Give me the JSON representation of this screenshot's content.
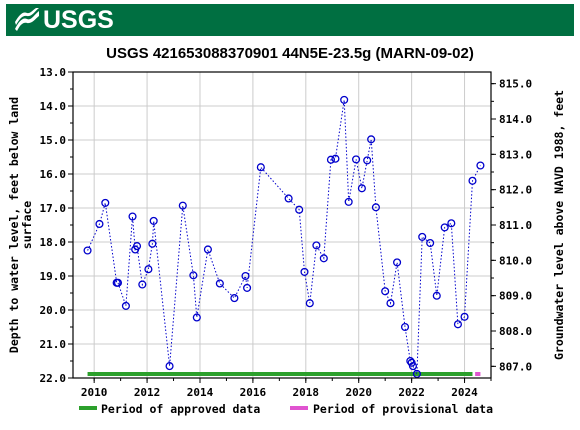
{
  "header": {
    "logo_text": "USGS",
    "background_color": "#006f41"
  },
  "chart_data": {
    "type": "line",
    "title": "USGS 421653088370901 44N5E-23.5g (MARN-09-02)",
    "ylabel_left": "Depth to water level, feet below land surface",
    "ylabel_right": "Groundwater level above NAVD 1988, feet",
    "xlim": [
      2009.2,
      2025.0
    ],
    "ylim_left": [
      13.0,
      22.0
    ],
    "ylim_right": [
      815.33,
      806.67
    ],
    "y_inverted": true,
    "x_ticks": [
      "2010",
      "2012",
      "2014",
      "2016",
      "2018",
      "2020",
      "2022",
      "2024"
    ],
    "y_left_ticks": [
      "13.0",
      "14.0",
      "15.0",
      "16.0",
      "17.0",
      "18.0",
      "19.0",
      "20.0",
      "21.0",
      "22.0"
    ],
    "y_right_ticks": [
      "815.0",
      "814.0",
      "813.0",
      "812.0",
      "811.0",
      "810.0",
      "809.0",
      "808.0",
      "807.0"
    ],
    "grid": true,
    "series": [
      {
        "style": "dotted-line-with-circle-markers",
        "color": "#0000cc",
        "x": [
          2009.75,
          2010.2,
          2010.42,
          2010.85,
          2010.9,
          2011.2,
          2011.45,
          2011.55,
          2011.62,
          2011.82,
          2012.05,
          2012.2,
          2012.25,
          2012.85,
          2013.35,
          2013.75,
          2013.88,
          2014.3,
          2014.75,
          2015.3,
          2015.72,
          2015.78,
          2016.3,
          2017.35,
          2017.75,
          2017.95,
          2018.15,
          2018.4,
          2018.68,
          2018.95,
          2019.12,
          2019.45,
          2019.62,
          2019.9,
          2020.12,
          2020.32,
          2020.47,
          2020.65,
          2021.0,
          2021.2,
          2021.45,
          2021.75,
          2021.95,
          2022.0,
          2022.05,
          2022.2,
          2022.4,
          2022.7,
          2022.95,
          2023.25,
          2023.5,
          2023.75,
          2024.0,
          2024.3,
          2024.6
        ],
        "y": [
          18.25,
          17.47,
          16.85,
          19.2,
          19.2,
          19.88,
          17.25,
          18.22,
          18.12,
          19.25,
          18.8,
          18.05,
          17.38,
          21.65,
          16.93,
          18.98,
          20.22,
          18.22,
          19.22,
          19.65,
          19.0,
          19.35,
          15.8,
          16.72,
          17.05,
          18.88,
          19.8,
          18.1,
          18.48,
          15.58,
          15.55,
          13.82,
          16.82,
          15.57,
          16.42,
          15.6,
          14.98,
          16.98,
          19.45,
          19.8,
          18.6,
          20.5,
          21.5,
          21.55,
          21.65,
          21.88,
          17.85,
          18.03,
          19.58,
          17.57,
          17.45,
          20.42,
          20.2,
          16.2,
          15.75
        ]
      }
    ],
    "periods": [
      {
        "label": "Period of approved data",
        "color": "#2ca02c",
        "x_range": [
          2009.75,
          2024.3
        ]
      },
      {
        "label": "Period of provisional data",
        "color": "#e054d0",
        "x_range": [
          2024.4,
          2024.6
        ]
      }
    ],
    "legend_placement": "bottom"
  }
}
